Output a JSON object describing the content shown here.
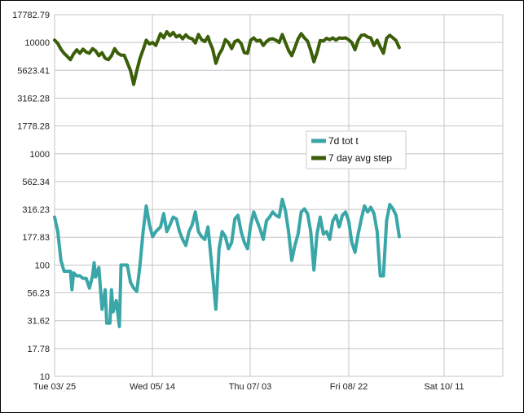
{
  "chart_data": {
    "type": "line",
    "y_scale": "log",
    "ylim": [
      10,
      17782.79
    ],
    "y_ticks": [
      "17782.79",
      "10000",
      "5623.41",
      "3162.28",
      "1778.28",
      "1000",
      "562.34",
      "316.23",
      "177.83",
      "100",
      "56.23",
      "31.62",
      "17.78",
      "10"
    ],
    "x_ticks": [
      "Tue 03/ 25",
      "Wed 05/ 14",
      "Thu 07/ 03",
      "Fri 08/ 22",
      "Sat 10/ 11"
    ],
    "grid": true,
    "legend_placement": "center-right",
    "series": [
      {
        "name": "7d tot t",
        "color": "#3aa6a8",
        "points": [
          [
            "03/25",
            270
          ],
          [
            "03/27",
            200
          ],
          [
            "03/29",
            110
          ],
          [
            "03/31",
            88
          ],
          [
            "04/02",
            88
          ],
          [
            "04/04",
            88
          ],
          [
            "04/05",
            60
          ],
          [
            "04/06",
            85
          ],
          [
            "04/08",
            80
          ],
          [
            "04/10",
            80
          ],
          [
            "04/12",
            76
          ],
          [
            "04/14",
            76
          ],
          [
            "04/16",
            62
          ],
          [
            "04/18",
            80
          ],
          [
            "04/19",
            105
          ],
          [
            "04/20",
            78
          ],
          [
            "04/22",
            95
          ],
          [
            "04/24",
            40
          ],
          [
            "04/26",
            60
          ],
          [
            "04/27",
            30
          ],
          [
            "04/29",
            30
          ],
          [
            "04/30",
            60
          ],
          [
            "05/01",
            38
          ],
          [
            "05/03",
            48
          ],
          [
            "05/05",
            28
          ],
          [
            "05/06",
            100
          ],
          [
            "05/08",
            100
          ],
          [
            "05/10",
            100
          ],
          [
            "05/12",
            70
          ],
          [
            "05/14",
            62
          ],
          [
            "05/16",
            58
          ],
          [
            "05/18",
            100
          ],
          [
            "05/20",
            200
          ],
          [
            "05/22",
            340
          ],
          [
            "05/24",
            230
          ],
          [
            "05/26",
            180
          ],
          [
            "05/28",
            200
          ],
          [
            "05/31",
            220
          ],
          [
            "06/02",
            290
          ],
          [
            "06/04",
            200
          ],
          [
            "06/06",
            230
          ],
          [
            "06/08",
            270
          ],
          [
            "06/10",
            260
          ],
          [
            "06/12",
            200
          ],
          [
            "06/14",
            170
          ],
          [
            "06/16",
            150
          ],
          [
            "06/18",
            200
          ],
          [
            "06/20",
            230
          ],
          [
            "06/22",
            300
          ],
          [
            "06/24",
            200
          ],
          [
            "06/26",
            180
          ],
          [
            "06/28",
            170
          ],
          [
            "06/30",
            220
          ],
          [
            "07/01",
            160
          ],
          [
            "07/03",
            80
          ],
          [
            "07/05",
            40
          ],
          [
            "07/07",
            140
          ],
          [
            "07/09",
            200
          ],
          [
            "07/11",
            180
          ],
          [
            "07/13",
            140
          ],
          [
            "07/15",
            160
          ],
          [
            "07/17",
            260
          ],
          [
            "07/19",
            280
          ],
          [
            "07/21",
            200
          ],
          [
            "07/23",
            160
          ],
          [
            "07/25",
            140
          ],
          [
            "07/27",
            230
          ],
          [
            "07/29",
            300
          ],
          [
            "07/31",
            250
          ],
          [
            "08/02",
            210
          ],
          [
            "08/04",
            170
          ],
          [
            "08/06",
            250
          ],
          [
            "08/08",
            270
          ],
          [
            "08/10",
            300
          ],
          [
            "08/12",
            280
          ],
          [
            "08/14",
            270
          ],
          [
            "08/16",
            390
          ],
          [
            "08/18",
            310
          ],
          [
            "08/20",
            200
          ],
          [
            "08/22",
            110
          ],
          [
            "08/24",
            150
          ],
          [
            "08/26",
            190
          ],
          [
            "08/28",
            300
          ],
          [
            "08/30",
            320
          ],
          [
            "09/01",
            290
          ],
          [
            "09/03",
            200
          ],
          [
            "09/05",
            90
          ],
          [
            "09/07",
            190
          ],
          [
            "09/09",
            270
          ],
          [
            "09/11",
            190
          ],
          [
            "09/13",
            200
          ],
          [
            "09/15",
            170
          ],
          [
            "09/17",
            250
          ],
          [
            "09/19",
            280
          ],
          [
            "09/21",
            220
          ],
          [
            "09/23",
            280
          ],
          [
            "09/25",
            300
          ],
          [
            "09/27",
            250
          ],
          [
            "09/29",
            160
          ],
          [
            "10/01",
            130
          ],
          [
            "10/03",
            190
          ],
          [
            "10/05",
            260
          ],
          [
            "10/07",
            340
          ],
          [
            "10/09",
            300
          ],
          [
            "10/11",
            330
          ],
          [
            "10/13",
            290
          ],
          [
            "10/15",
            200
          ],
          [
            "10/17",
            80
          ],
          [
            "10/19",
            80
          ],
          [
            "10/21",
            250
          ],
          [
            "10/23",
            350
          ],
          [
            "10/25",
            320
          ],
          [
            "10/27",
            280
          ],
          [
            "10/29",
            180
          ]
        ]
      },
      {
        "name": "7 day avg step",
        "color": "#3b5e09",
        "points": [
          [
            "03/25",
            10500
          ],
          [
            "03/27",
            9800
          ],
          [
            "03/29",
            8700
          ],
          [
            "03/31",
            8000
          ],
          [
            "04/02",
            7500
          ],
          [
            "04/04",
            7000
          ],
          [
            "04/06",
            7900
          ],
          [
            "04/08",
            8600
          ],
          [
            "04/10",
            8000
          ],
          [
            "04/12",
            8700
          ],
          [
            "04/14",
            8200
          ],
          [
            "04/16",
            8000
          ],
          [
            "04/18",
            8800
          ],
          [
            "04/20",
            8400
          ],
          [
            "04/22",
            7600
          ],
          [
            "04/24",
            8100
          ],
          [
            "04/26",
            7200
          ],
          [
            "04/28",
            7000
          ],
          [
            "04/30",
            7600
          ],
          [
            "05/02",
            8800
          ],
          [
            "05/04",
            8000
          ],
          [
            "05/06",
            7700
          ],
          [
            "05/08",
            7700
          ],
          [
            "05/10",
            6600
          ],
          [
            "05/12",
            5600
          ],
          [
            "05/14",
            4200
          ],
          [
            "05/16",
            5600
          ],
          [
            "05/18",
            7200
          ],
          [
            "05/20",
            8600
          ],
          [
            "05/22",
            10500
          ],
          [
            "05/24",
            9700
          ],
          [
            "05/26",
            10000
          ],
          [
            "05/28",
            9400
          ],
          [
            "05/31",
            12000
          ],
          [
            "06/02",
            11000
          ],
          [
            "06/04",
            12500
          ],
          [
            "06/06",
            11500
          ],
          [
            "06/08",
            12300
          ],
          [
            "06/10",
            11200
          ],
          [
            "06/12",
            11600
          ],
          [
            "06/14",
            10800
          ],
          [
            "06/16",
            11700
          ],
          [
            "06/18",
            11000
          ],
          [
            "06/20",
            10800
          ],
          [
            "06/22",
            9900
          ],
          [
            "06/24",
            11800
          ],
          [
            "06/26",
            10600
          ],
          [
            "06/28",
            10200
          ],
          [
            "06/30",
            11300
          ],
          [
            "07/01",
            10200
          ],
          [
            "07/03",
            8700
          ],
          [
            "07/05",
            6500
          ],
          [
            "07/07",
            7800
          ],
          [
            "07/09",
            8700
          ],
          [
            "07/11",
            10600
          ],
          [
            "07/13",
            10000
          ],
          [
            "07/15",
            8800
          ],
          [
            "07/17",
            10200
          ],
          [
            "07/19",
            10500
          ],
          [
            "07/21",
            9800
          ],
          [
            "07/23",
            8100
          ],
          [
            "07/25",
            8000
          ],
          [
            "07/27",
            10500
          ],
          [
            "07/29",
            11000
          ],
          [
            "07/31",
            10300
          ],
          [
            "08/02",
            10500
          ],
          [
            "08/04",
            9400
          ],
          [
            "08/06",
            10200
          ],
          [
            "08/08",
            10700
          ],
          [
            "08/10",
            10800
          ],
          [
            "08/12",
            10500
          ],
          [
            "08/14",
            10000
          ],
          [
            "08/16",
            11800
          ],
          [
            "08/18",
            10000
          ],
          [
            "08/20",
            8500
          ],
          [
            "08/22",
            7600
          ],
          [
            "08/24",
            9000
          ],
          [
            "08/26",
            10800
          ],
          [
            "08/28",
            12000
          ],
          [
            "08/30",
            11000
          ],
          [
            "09/01",
            10300
          ],
          [
            "09/03",
            8500
          ],
          [
            "09/05",
            6700
          ],
          [
            "09/07",
            8100
          ],
          [
            "09/09",
            10400
          ],
          [
            "09/11",
            10300
          ],
          [
            "09/13",
            10900
          ],
          [
            "09/15",
            10600
          ],
          [
            "09/17",
            11000
          ],
          [
            "09/19",
            10500
          ],
          [
            "09/21",
            11000
          ],
          [
            "09/23",
            10900
          ],
          [
            "09/25",
            11000
          ],
          [
            "09/27",
            10600
          ],
          [
            "09/29",
            10000
          ],
          [
            "10/01",
            8600
          ],
          [
            "10/03",
            10500
          ],
          [
            "10/05",
            11600
          ],
          [
            "10/07",
            11700
          ],
          [
            "10/09",
            11200
          ],
          [
            "10/11",
            11000
          ],
          [
            "10/13",
            9400
          ],
          [
            "10/15",
            10500
          ],
          [
            "10/17",
            9100
          ],
          [
            "10/19",
            8000
          ],
          [
            "10/21",
            10900
          ],
          [
            "10/23",
            11600
          ],
          [
            "10/25",
            11000
          ],
          [
            "10/27",
            10400
          ],
          [
            "10/29",
            9000
          ]
        ]
      }
    ]
  }
}
